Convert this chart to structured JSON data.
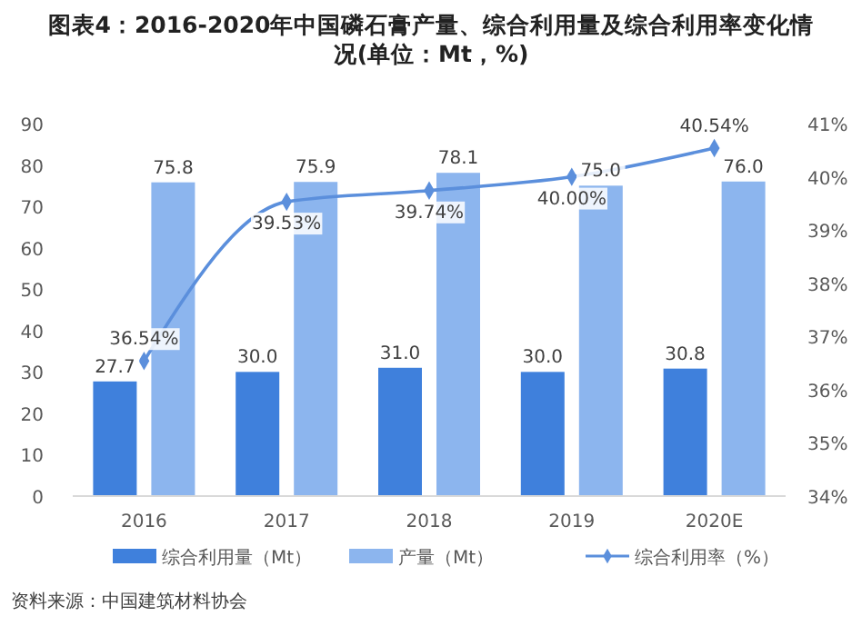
{
  "chart_data": {
    "type": "bar",
    "title": "图表4：2016-2020年中国磷石膏产量、综合利用量及综合利用率变化情况(单位：Mt，%)",
    "categories": [
      "2016",
      "2017",
      "2018",
      "2019",
      "2020E"
    ],
    "series": [
      {
        "name": "综合利用量（Mt）",
        "color": "#3f80dc",
        "values": [
          27.7,
          30.0,
          31.0,
          30.0,
          30.8
        ],
        "value_labels": [
          "27.7",
          "30.0",
          "31.0",
          "30.0",
          "30.8"
        ]
      },
      {
        "name": "产量（Mt）",
        "color": "#8cb5ee",
        "values": [
          75.8,
          75.9,
          78.1,
          75.0,
          76.0
        ],
        "value_labels": [
          "75.8",
          "75.9",
          "78.1",
          "75.0",
          "76.0"
        ]
      },
      {
        "name": "综合利用率（%）",
        "type": "line",
        "axis": "y2",
        "color": "#5b8fdc",
        "marker": "diamond",
        "values": [
          36.54,
          39.53,
          39.74,
          40.0,
          40.54
        ],
        "value_labels": [
          "36.54%",
          "39.53%",
          "39.74%",
          "40.00%",
          "40.54%"
        ]
      }
    ],
    "ylim": [
      0,
      90
    ],
    "yticks": [
      0,
      10,
      20,
      30,
      40,
      50,
      60,
      70,
      80,
      90
    ],
    "y2lim": [
      34,
      41
    ],
    "y2ticks": [
      {
        "value": 34,
        "label": "34%"
      },
      {
        "value": 35,
        "label": "35%"
      },
      {
        "value": 36,
        "label": "36%"
      },
      {
        "value": 37,
        "label": "37%"
      },
      {
        "value": 38,
        "label": "38%"
      },
      {
        "value": 39,
        "label": "39%"
      },
      {
        "value": 40,
        "label": "40%"
      },
      {
        "value": 41,
        "label": "41%"
      }
    ],
    "grid": false,
    "legend": "bottom",
    "annotations": [
      "资料来源：中国建筑材料协会"
    ]
  }
}
